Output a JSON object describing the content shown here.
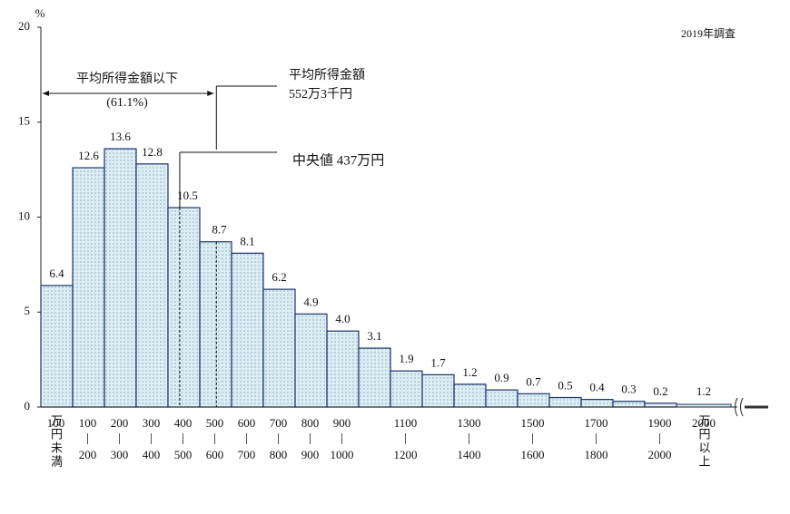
{
  "chart_data": {
    "type": "bar",
    "y_unit": "%",
    "note": "2019年調査",
    "categories": [
      [
        "100",
        "万円未満"
      ],
      [
        "100",
        "200"
      ],
      [
        "200",
        "300"
      ],
      [
        "300",
        "400"
      ],
      [
        "400",
        "500"
      ],
      [
        "500",
        "600"
      ],
      [
        "600",
        "700"
      ],
      [
        "700",
        "800"
      ],
      [
        "800",
        "900"
      ],
      [
        "900",
        "1000"
      ],
      null,
      [
        "1100",
        "1200"
      ],
      null,
      [
        "1300",
        "1400"
      ],
      null,
      [
        "1500",
        "1600"
      ],
      null,
      [
        "1700",
        "1800"
      ],
      null,
      [
        "1900",
        "2000"
      ],
      [
        "2000",
        "万円以上"
      ]
    ],
    "values": [
      6.4,
      12.6,
      13.6,
      12.8,
      10.5,
      8.7,
      8.1,
      6.2,
      4.9,
      4.0,
      3.1,
      1.9,
      1.7,
      1.2,
      0.9,
      0.7,
      0.5,
      0.4,
      0.3,
      0.2,
      1.2
    ],
    "value_labels": [
      "6.4",
      "12.6",
      "13.6",
      "12.8",
      "10.5",
      "8.7",
      "8.1",
      "6.2",
      "4.9",
      "4.0",
      "3.1",
      "1.9",
      "1.7",
      "1.2",
      "0.9",
      "0.7",
      "0.5",
      "0.4",
      "0.3",
      "0.2",
      "1.2"
    ],
    "color": "#dcedf3",
    "edge_color": "#1c3566",
    "ylim": [
      0,
      20
    ],
    "yticks": [
      0,
      5,
      10,
      15,
      20
    ],
    "grid": false,
    "bin_width": 100,
    "mean": {
      "value": 552.3,
      "title": "平均所得金額",
      "label": "552万3千円"
    },
    "below_mean": {
      "label": "平均所得金額以下",
      "share": "(61.1%)"
    },
    "median": {
      "value": 437,
      "label": "中央値 437万円"
    }
  }
}
